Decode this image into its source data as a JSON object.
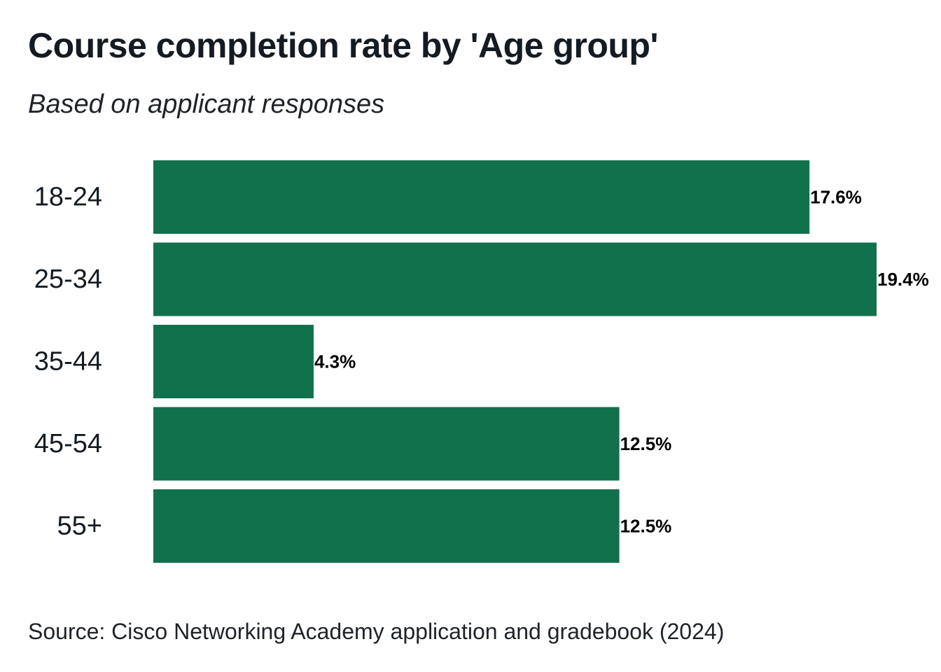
{
  "title": "Course completion rate by 'Age group'",
  "subtitle": "Based on applicant responses",
  "source": "Source: Cisco Networking Academy application and gradebook (2024)",
  "colors": {
    "bar": "#12714d",
    "text": "#141b22"
  },
  "chart_data": {
    "type": "bar",
    "orientation": "horizontal",
    "title": "Course completion rate by 'Age group'",
    "subtitle": "Based on applicant responses",
    "categories": [
      "18-24",
      "25-34",
      "35-44",
      "45-54",
      "55+"
    ],
    "values": [
      17.6,
      19.4,
      4.3,
      12.5,
      12.5
    ],
    "value_labels": [
      "17.6%",
      "19.4%",
      "4.3%",
      "12.5%",
      "12.5%"
    ],
    "unit": "%",
    "xlim": [
      0,
      19.4
    ],
    "grid": false,
    "legend": "none",
    "xlabel": "",
    "ylabel": ""
  }
}
